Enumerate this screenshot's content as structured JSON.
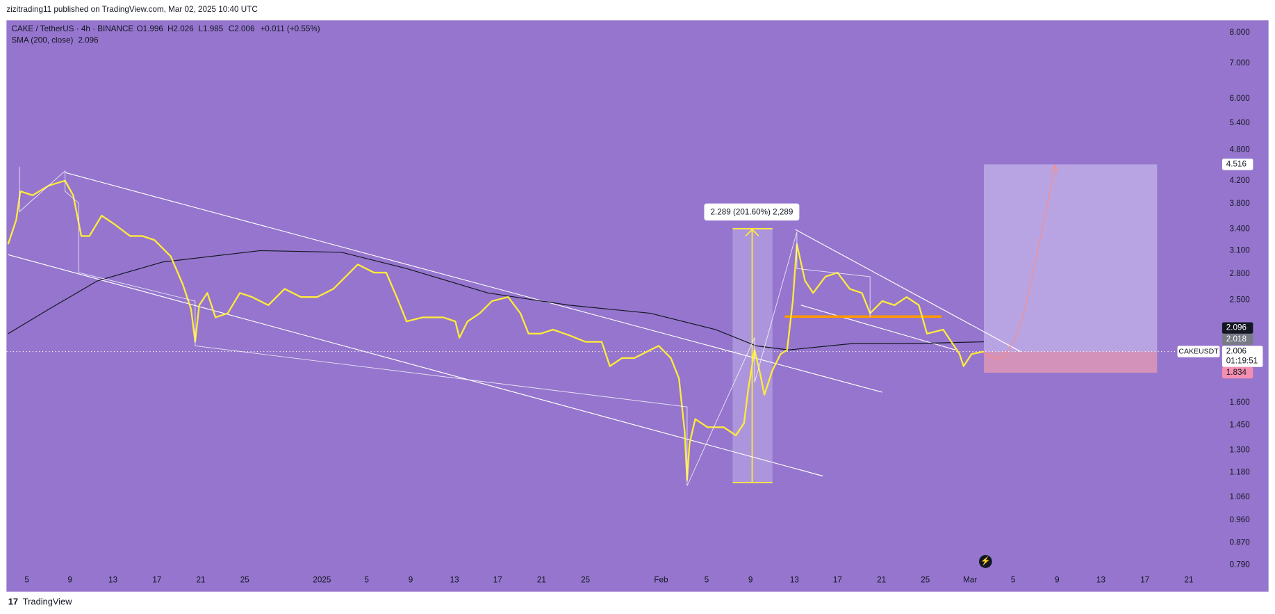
{
  "header": {
    "published": "zizitrading11 published on TradingView.com, Mar 02, 2025 10:40 UTC"
  },
  "legend": {
    "symbol": "CAKE / TetherUS · 4h · BINANCE",
    "open": "O1.996",
    "high": "H2.026",
    "low": "L1.985",
    "close": "C2.006",
    "change": "+0.011 (+0.55%)",
    "sma_name": "SMA (200, close)",
    "sma_value": "2.096"
  },
  "price_axis": {
    "labels": [
      "8.000",
      "7.000",
      "6.000",
      "5.400",
      "4.800",
      "4.200",
      "3.800",
      "3.400",
      "3.100",
      "2.800",
      "2.500",
      "1.600",
      "1.450",
      "1.300",
      "1.180",
      "1.060",
      "0.960",
      "0.870",
      "0.790"
    ],
    "badges": {
      "target": "4.516",
      "sma": "2.096",
      "entry": "2.018",
      "last": "2.006",
      "countdown": "01:19:51",
      "stop": "1.834",
      "symbol": "CAKEUSDT"
    }
  },
  "time_axis": {
    "labels": [
      "5",
      "9",
      "13",
      "17",
      "21",
      "25",
      "2025",
      "5",
      "9",
      "13",
      "17",
      "21",
      "25",
      "Feb",
      "5",
      "9",
      "13",
      "17",
      "21",
      "25",
      "Mar",
      "5",
      "9",
      "13",
      "17",
      "21"
    ]
  },
  "annotations": {
    "measure": "2.289 (201.60%) 2,289"
  },
  "footer": {
    "brand": "TradingView"
  }
}
